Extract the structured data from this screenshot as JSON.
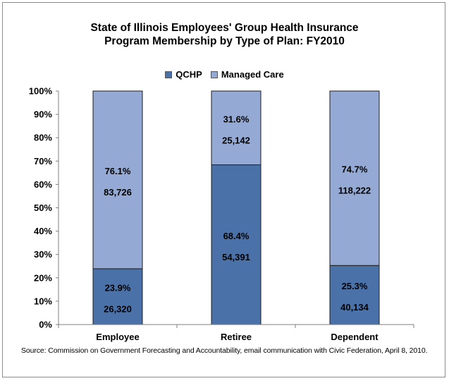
{
  "chart_data": {
    "type": "bar",
    "stacked": true,
    "percent_stacked": true,
    "title_lines": [
      "State of Illinois Employees' Group Health Insurance",
      "Program Membership by Type of Plan: FY2010"
    ],
    "categories": [
      "Employee",
      "Retiree",
      "Dependent"
    ],
    "series": [
      {
        "name": "QCHP",
        "color": "#4a72a8",
        "percent_labels": [
          "23.9%",
          "68.4%",
          "25.3%"
        ],
        "values": [
          23.9,
          68.4,
          25.3
        ],
        "counts": [
          "26,320",
          "54,391",
          "40,134"
        ]
      },
      {
        "name": "Managed Care",
        "color": "#94a9d3",
        "percent_labels": [
          "76.1%",
          "31.6%",
          "74.7%"
        ],
        "values": [
          76.1,
          31.6,
          74.7
        ],
        "counts": [
          "83,726",
          "25,142",
          "118,222"
        ]
      }
    ],
    "y_ticks": [
      "0%",
      "10%",
      "20%",
      "30%",
      "40%",
      "50%",
      "60%",
      "70%",
      "80%",
      "90%",
      "100%"
    ],
    "ylim": [
      0,
      100
    ],
    "grid": false,
    "legend_position": "top",
    "source": "Source: Commission on Government Forecasting and Accountability, email communication with Civic Federation, April 8, 2010."
  }
}
